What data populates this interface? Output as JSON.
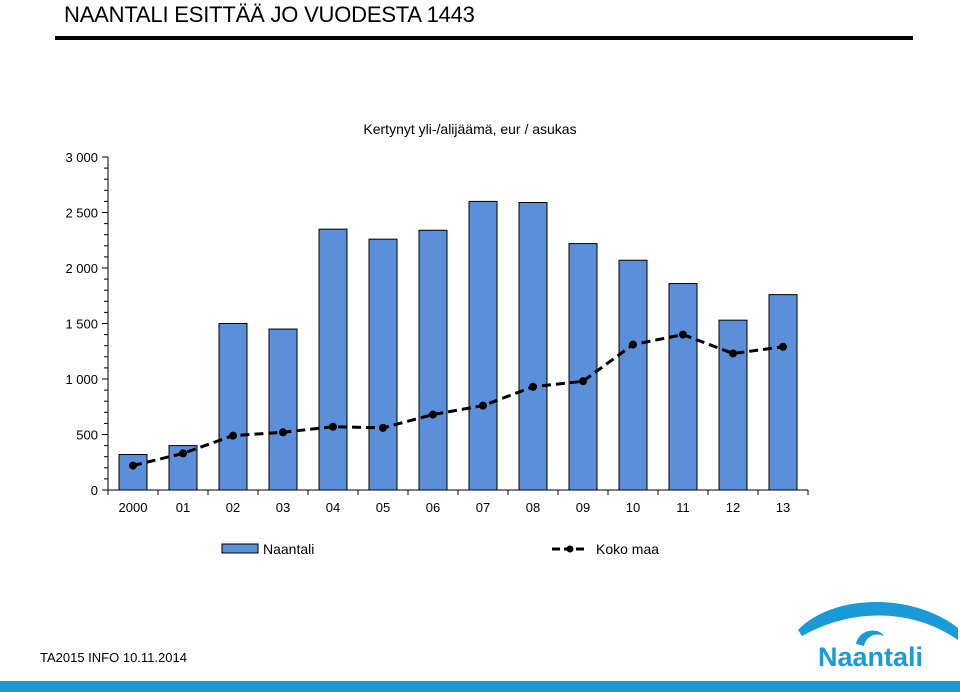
{
  "slide": {
    "title": "NAANTALI ESITTÄÄ JO VUODESTA 1443",
    "footer": "TA2015 INFO 10.11.2014"
  },
  "logo": {
    "text": "Naantali",
    "color": "#1a9bd7"
  },
  "colors": {
    "bar": "#5b8fd9",
    "line": "#000000",
    "accent": "#1a9bd7"
  },
  "chart_data": {
    "type": "bar",
    "title": "Kertynyt  yli-/alijäämä, eur / asukas",
    "categories": [
      "2000",
      "01",
      "02",
      "03",
      "04",
      "05",
      "06",
      "07",
      "08",
      "09",
      "10",
      "11",
      "12",
      "13"
    ],
    "ylim": [
      0,
      3000
    ],
    "yticks": [
      "0",
      "500",
      "1 000",
      "1 500",
      "2 000",
      "2 500",
      "3 000"
    ],
    "ytick_values": [
      0,
      500,
      1000,
      1500,
      2000,
      2500,
      3000
    ],
    "series": [
      {
        "name": "Naantali",
        "type": "bar",
        "values": [
          320,
          400,
          1500,
          1450,
          2350,
          2260,
          2340,
          2600,
          2590,
          2220,
          2070,
          1860,
          1530,
          1760
        ]
      },
      {
        "name": "Koko maa",
        "type": "line",
        "values": [
          220,
          330,
          490,
          520,
          570,
          560,
          680,
          760,
          930,
          980,
          1310,
          1400,
          1230,
          1290
        ]
      }
    ],
    "legend": "bottom"
  }
}
